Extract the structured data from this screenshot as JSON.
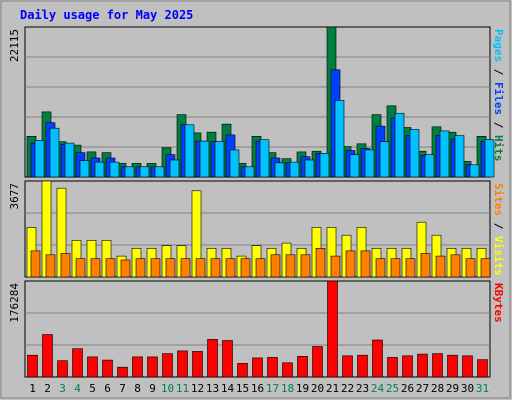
{
  "chart_data": [
    {
      "type": "bar",
      "title": "Daily usage for May 2025",
      "ymax_label": "22115",
      "ylabel_parts": [
        {
          "text": "Pages",
          "color": "#00c0ff"
        },
        {
          "text": " / ",
          "color": "#000000"
        },
        {
          "text": "Files",
          "color": "#0040ff"
        },
        {
          "text": " / ",
          "color": "#000000"
        },
        {
          "text": "Hits",
          "color": "#008040"
        }
      ],
      "categories": [
        "1",
        "2",
        "3",
        "4",
        "5",
        "6",
        "7",
        "8",
        "9",
        "10",
        "11",
        "12",
        "13",
        "14",
        "15",
        "16",
        "17",
        "18",
        "19",
        "20",
        "21",
        "22",
        "23",
        "24",
        "25",
        "26",
        "27",
        "28",
        "29",
        "30",
        "31"
      ],
      "ylim": [
        0,
        22115
      ],
      "series": [
        {
          "name": "Hits",
          "color": "#008040",
          "values": [
            6000,
            9600,
            5200,
            4700,
            3700,
            3600,
            2000,
            2000,
            2000,
            4300,
            9200,
            6500,
            6600,
            7800,
            2000,
            6000,
            3600,
            2700,
            3700,
            3800,
            22115,
            4500,
            4900,
            9200,
            10500,
            7300,
            3800,
            7400,
            6600,
            2300,
            6000
          ]
        },
        {
          "name": "Files",
          "color": "#0040ff",
          "values": [
            5000,
            8000,
            4800,
            3600,
            2800,
            2800,
            1500,
            1500,
            1500,
            3300,
            7700,
            5300,
            5200,
            6200,
            1500,
            5300,
            2800,
            2100,
            3000,
            3500,
            15800,
            3900,
            4200,
            7500,
            8700,
            6100,
            3200,
            6100,
            5600,
            1800,
            5200
          ]
        },
        {
          "name": "Pages",
          "color": "#00c0ff",
          "values": [
            5400,
            7200,
            5000,
            2400,
            2200,
            2200,
            1500,
            1500,
            1500,
            2500,
            7700,
            5300,
            5200,
            4000,
            1500,
            5500,
            2100,
            2200,
            2500,
            3500,
            11300,
            3300,
            4000,
            5200,
            9400,
            7000,
            3300,
            6800,
            6100,
            1800,
            5500
          ]
        }
      ]
    },
    {
      "type": "bar",
      "ymax_label": "3677",
      "ylabel_parts": [
        {
          "text": "Sites",
          "color": "#ff8000"
        },
        {
          "text": " / ",
          "color": "#000000"
        },
        {
          "text": "Visits",
          "color": "#ffff00"
        }
      ],
      "ylim": [
        0,
        3677
      ],
      "series": [
        {
          "name": "Visits",
          "color": "#ffff00",
          "values": [
            1900,
            3677,
            3400,
            1400,
            1400,
            1400,
            800,
            1100,
            1100,
            1200,
            1200,
            3300,
            1100,
            1100,
            800,
            1200,
            1100,
            1300,
            1100,
            1900,
            1900,
            1600,
            1900,
            1100,
            1100,
            1100,
            2100,
            1600,
            1100,
            1100,
            1100
          ]
        },
        {
          "name": "Sites",
          "color": "#ff8000",
          "values": [
            1000,
            850,
            900,
            700,
            700,
            700,
            650,
            700,
            700,
            700,
            700,
            700,
            700,
            700,
            700,
            700,
            850,
            850,
            850,
            1100,
            800,
            1000,
            1000,
            700,
            700,
            700,
            900,
            800,
            850,
            700,
            700
          ]
        }
      ]
    },
    {
      "type": "bar",
      "ymax_label": "176284",
      "ylabel_parts": [
        {
          "text": "KBytes",
          "color": "#ff0000"
        }
      ],
      "ylim": [
        0,
        176284
      ],
      "series": [
        {
          "name": "KBytes",
          "color": "#ff0000",
          "values": [
            40000,
            78000,
            30000,
            52000,
            37000,
            31000,
            18000,
            37000,
            37000,
            43000,
            48000,
            47000,
            69000,
            67000,
            25000,
            35000,
            36000,
            26000,
            38000,
            56000,
            176284,
            39000,
            40000,
            68000,
            36000,
            39000,
            42000,
            43000,
            40000,
            39000,
            32000
          ]
        }
      ]
    }
  ],
  "weekend_days": [
    "3",
    "4",
    "10",
    "11",
    "17",
    "18",
    "24",
    "25",
    "31"
  ],
  "colors": {
    "background": "#c0c0c0",
    "plot_background": "#c0c0c0",
    "title": "#0000ff",
    "weekday_label": "#000000",
    "weekend_label": "#00805c",
    "grid": "#808080"
  }
}
